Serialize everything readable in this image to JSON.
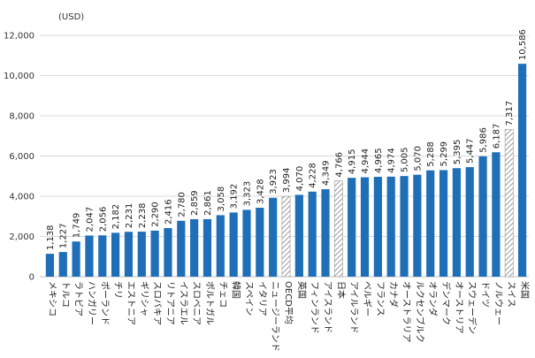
{
  "chart_data": {
    "type": "bar",
    "unit_label": "(USD)",
    "ylim": [
      0,
      12000
    ],
    "yticks": [
      0,
      2000,
      4000,
      6000,
      8000,
      10000,
      12000
    ],
    "ytick_labels": [
      "0",
      "2,000",
      "4,000",
      "6,000",
      "8,000",
      "10,000",
      "12,000"
    ],
    "grid": true,
    "legend": "none",
    "categories": [
      "メキシコ",
      "トルコ",
      "ラトビア",
      "ハンガリー",
      "ポーランド",
      "チリ",
      "エストニア",
      "ギリシャ",
      "スロバキア",
      "リトアニア",
      "イスラエル",
      "スロベニア",
      "ポルトガル",
      "チェコ",
      "韓国",
      "スペイン",
      "イタリア",
      "ニュージーランド",
      "OECD平均",
      "英国",
      "フィンランド",
      "アイスランド",
      "日本",
      "アイルランド",
      "ベルギー",
      "フランス",
      "カナダ",
      "オーストラリア",
      "ルクセンブルク",
      "オランダ",
      "デンマーク",
      "オーストリア",
      "スウェーデン",
      "ドイツ",
      "ノルウェー",
      "スイス",
      "米国"
    ],
    "values": [
      1138,
      1227,
      1749,
      2047,
      2056,
      2182,
      2231,
      2238,
      2290,
      2416,
      2780,
      2859,
      2861,
      3058,
      3192,
      3323,
      3428,
      3923,
      3994,
      4070,
      4228,
      4349,
      4766,
      4915,
      4944,
      4965,
      4974,
      5005,
      5070,
      5288,
      5299,
      5395,
      5447,
      5986,
      6187,
      7317,
      10586
    ],
    "value_labels": [
      "1,138",
      "1,227",
      "1,749",
      "2,047",
      "2,056",
      "2,182",
      "2,231",
      "2,238",
      "2,290",
      "2,416",
      "2,780",
      "2,859",
      "2,861",
      "3,058",
      "3,192",
      "3,323",
      "3,428",
      "3,923",
      "3,994",
      "4,070",
      "4,228",
      "4,349",
      "4,766",
      "4,915",
      "4,944",
      "4,965",
      "4,974",
      "5,005",
      "5,070",
      "5,288",
      "5,299",
      "5,395",
      "5,447",
      "5,986",
      "6,187",
      "7,317",
      "10,586"
    ],
    "hatched_categories": [
      "OECD平均",
      "日本",
      "スイス"
    ],
    "colors": {
      "bar": "#1f6fb8",
      "hatch_stroke": "#999999",
      "hatch_fill": "#ffffff",
      "grid": "#d9d9d9",
      "axis": "#bfbfbf"
    }
  }
}
